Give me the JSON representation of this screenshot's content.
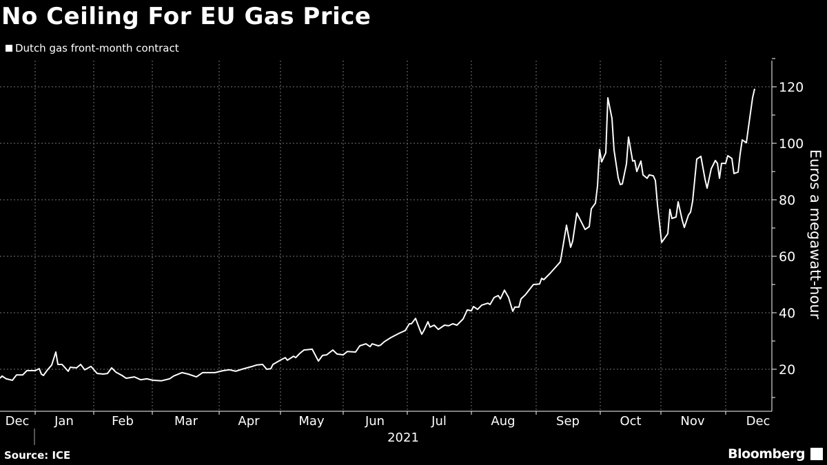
{
  "chart_data": {
    "type": "line",
    "title": "No Ceiling For EU Gas Price",
    "legend": [
      {
        "label": "Dutch gas front-month contract",
        "color": "#ffffff"
      }
    ],
    "legend_placement": "top-left",
    "xlabel": "2021",
    "ylabel": "Euros a megawatt-hour",
    "x_unit": "days since 2021-01-01",
    "x_tick_labels": [
      "Dec",
      "Jan",
      "Feb",
      "Mar",
      "Apr",
      "May",
      "Jun",
      "Jul",
      "Aug",
      "Sep",
      "Oct",
      "Nov",
      "Dec"
    ],
    "y_ticks": [
      20,
      40,
      60,
      80,
      100,
      120
    ],
    "ylim": [
      5,
      130
    ],
    "grid": true,
    "series": [
      {
        "name": "Dutch gas front-month contract",
        "color": "#ffffff",
        "x": [
          -17,
          -16,
          -14,
          -11,
          -9,
          -6,
          -4,
          0,
          2,
          3,
          4,
          6,
          8,
          10,
          11,
          13,
          16,
          17,
          20,
          22,
          24,
          27,
          30,
          33,
          35,
          37,
          39,
          42,
          44,
          48,
          51,
          54,
          57,
          61,
          65,
          67,
          71,
          74,
          78,
          81,
          87,
          91,
          94,
          97,
          100,
          105,
          107,
          110,
          112,
          114,
          115,
          119,
          121,
          122,
          125,
          126,
          128,
          130,
          134,
          137,
          139,
          141,
          144,
          146,
          149,
          151,
          155,
          157,
          160,
          162,
          163,
          166,
          167,
          169,
          172,
          176,
          179,
          181,
          182,
          184,
          186,
          187,
          188,
          190,
          191,
          193,
          195,
          198,
          200,
          202,
          204,
          207,
          209,
          211,
          212,
          214,
          216,
          219,
          220,
          222,
          224,
          225,
          227,
          229,
          231,
          232,
          234,
          235,
          237,
          241,
          244,
          245,
          246,
          249,
          254,
          255,
          257,
          259,
          260,
          262,
          266,
          268,
          269,
          271,
          272,
          273,
          274,
          276,
          277,
          279,
          280,
          282,
          283,
          284,
          286,
          287,
          289,
          290,
          291,
          293,
          294,
          296,
          297,
          299,
          300,
          301,
          303,
          304,
          306,
          307,
          308,
          310,
          311,
          313,
          314,
          316,
          317,
          318,
          320,
          322,
          324,
          325,
          327,
          329,
          330,
          331,
          332,
          334,
          335,
          337,
          338,
          340,
          341,
          342,
          344,
          345,
          347,
          348
        ],
        "y": [
          16.8,
          17.6,
          16.6,
          16.1,
          18,
          18,
          19.5,
          19.5,
          20.2,
          18.3,
          17.8,
          19.8,
          21.5,
          26.1,
          21.7,
          21.7,
          19.3,
          20.7,
          20.5,
          21.7,
          19.8,
          21,
          18.5,
          18.3,
          18.5,
          20.5,
          19,
          17.8,
          16.8,
          17.3,
          16.3,
          16.6,
          16.1,
          15.9,
          16.6,
          17.6,
          18.8,
          18.3,
          17.3,
          18.8,
          18.8,
          19.5,
          19.8,
          19.3,
          20,
          21,
          21.5,
          21.7,
          20,
          20.2,
          21.7,
          23.4,
          24.1,
          23.2,
          24.6,
          24.1,
          25.6,
          26.8,
          27.1,
          22.9,
          24.9,
          25.1,
          26.8,
          25.4,
          25.1,
          26.3,
          26.1,
          28.3,
          29,
          28,
          29,
          28.3,
          28.5,
          29.8,
          31.2,
          32.7,
          33.7,
          36.1,
          36.1,
          38,
          34.1,
          32.4,
          33.7,
          36.8,
          34.9,
          35.6,
          34.1,
          35.6,
          35.4,
          36.1,
          35.6,
          37.8,
          41,
          40.7,
          42.2,
          41.2,
          42.7,
          43.4,
          42.9,
          45.4,
          46.1,
          44.9,
          48,
          45.4,
          40.5,
          42,
          42,
          44.9,
          46.3,
          50,
          50.2,
          52.2,
          51.7,
          53.9,
          58,
          62.2,
          71,
          63.2,
          65.4,
          75.3,
          69.5,
          70.5,
          76.8,
          78.8,
          84.9,
          97.8,
          93.4,
          96.6,
          116.1,
          108.8,
          97.6,
          87.8,
          85.4,
          85.6,
          92.7,
          102.2,
          93.7,
          93.9,
          90,
          93.7,
          88.8,
          87.6,
          88.8,
          88.5,
          86.8,
          78.3,
          64.9,
          65.9,
          68,
          76.6,
          73.4,
          73.9,
          79.3,
          72.7,
          70.2,
          74.6,
          75.6,
          79.5,
          94.4,
          95.4,
          87.3,
          84.1,
          91,
          93.9,
          92.9,
          87.6,
          92.9,
          92.9,
          95.6,
          94.6,
          89.3,
          89.8,
          96.3,
          101.2,
          100.2,
          105.6,
          116.1,
          119.3
        ]
      }
    ]
  },
  "footer": {
    "source": "Source: ICE",
    "brand": "Bloomberg"
  }
}
